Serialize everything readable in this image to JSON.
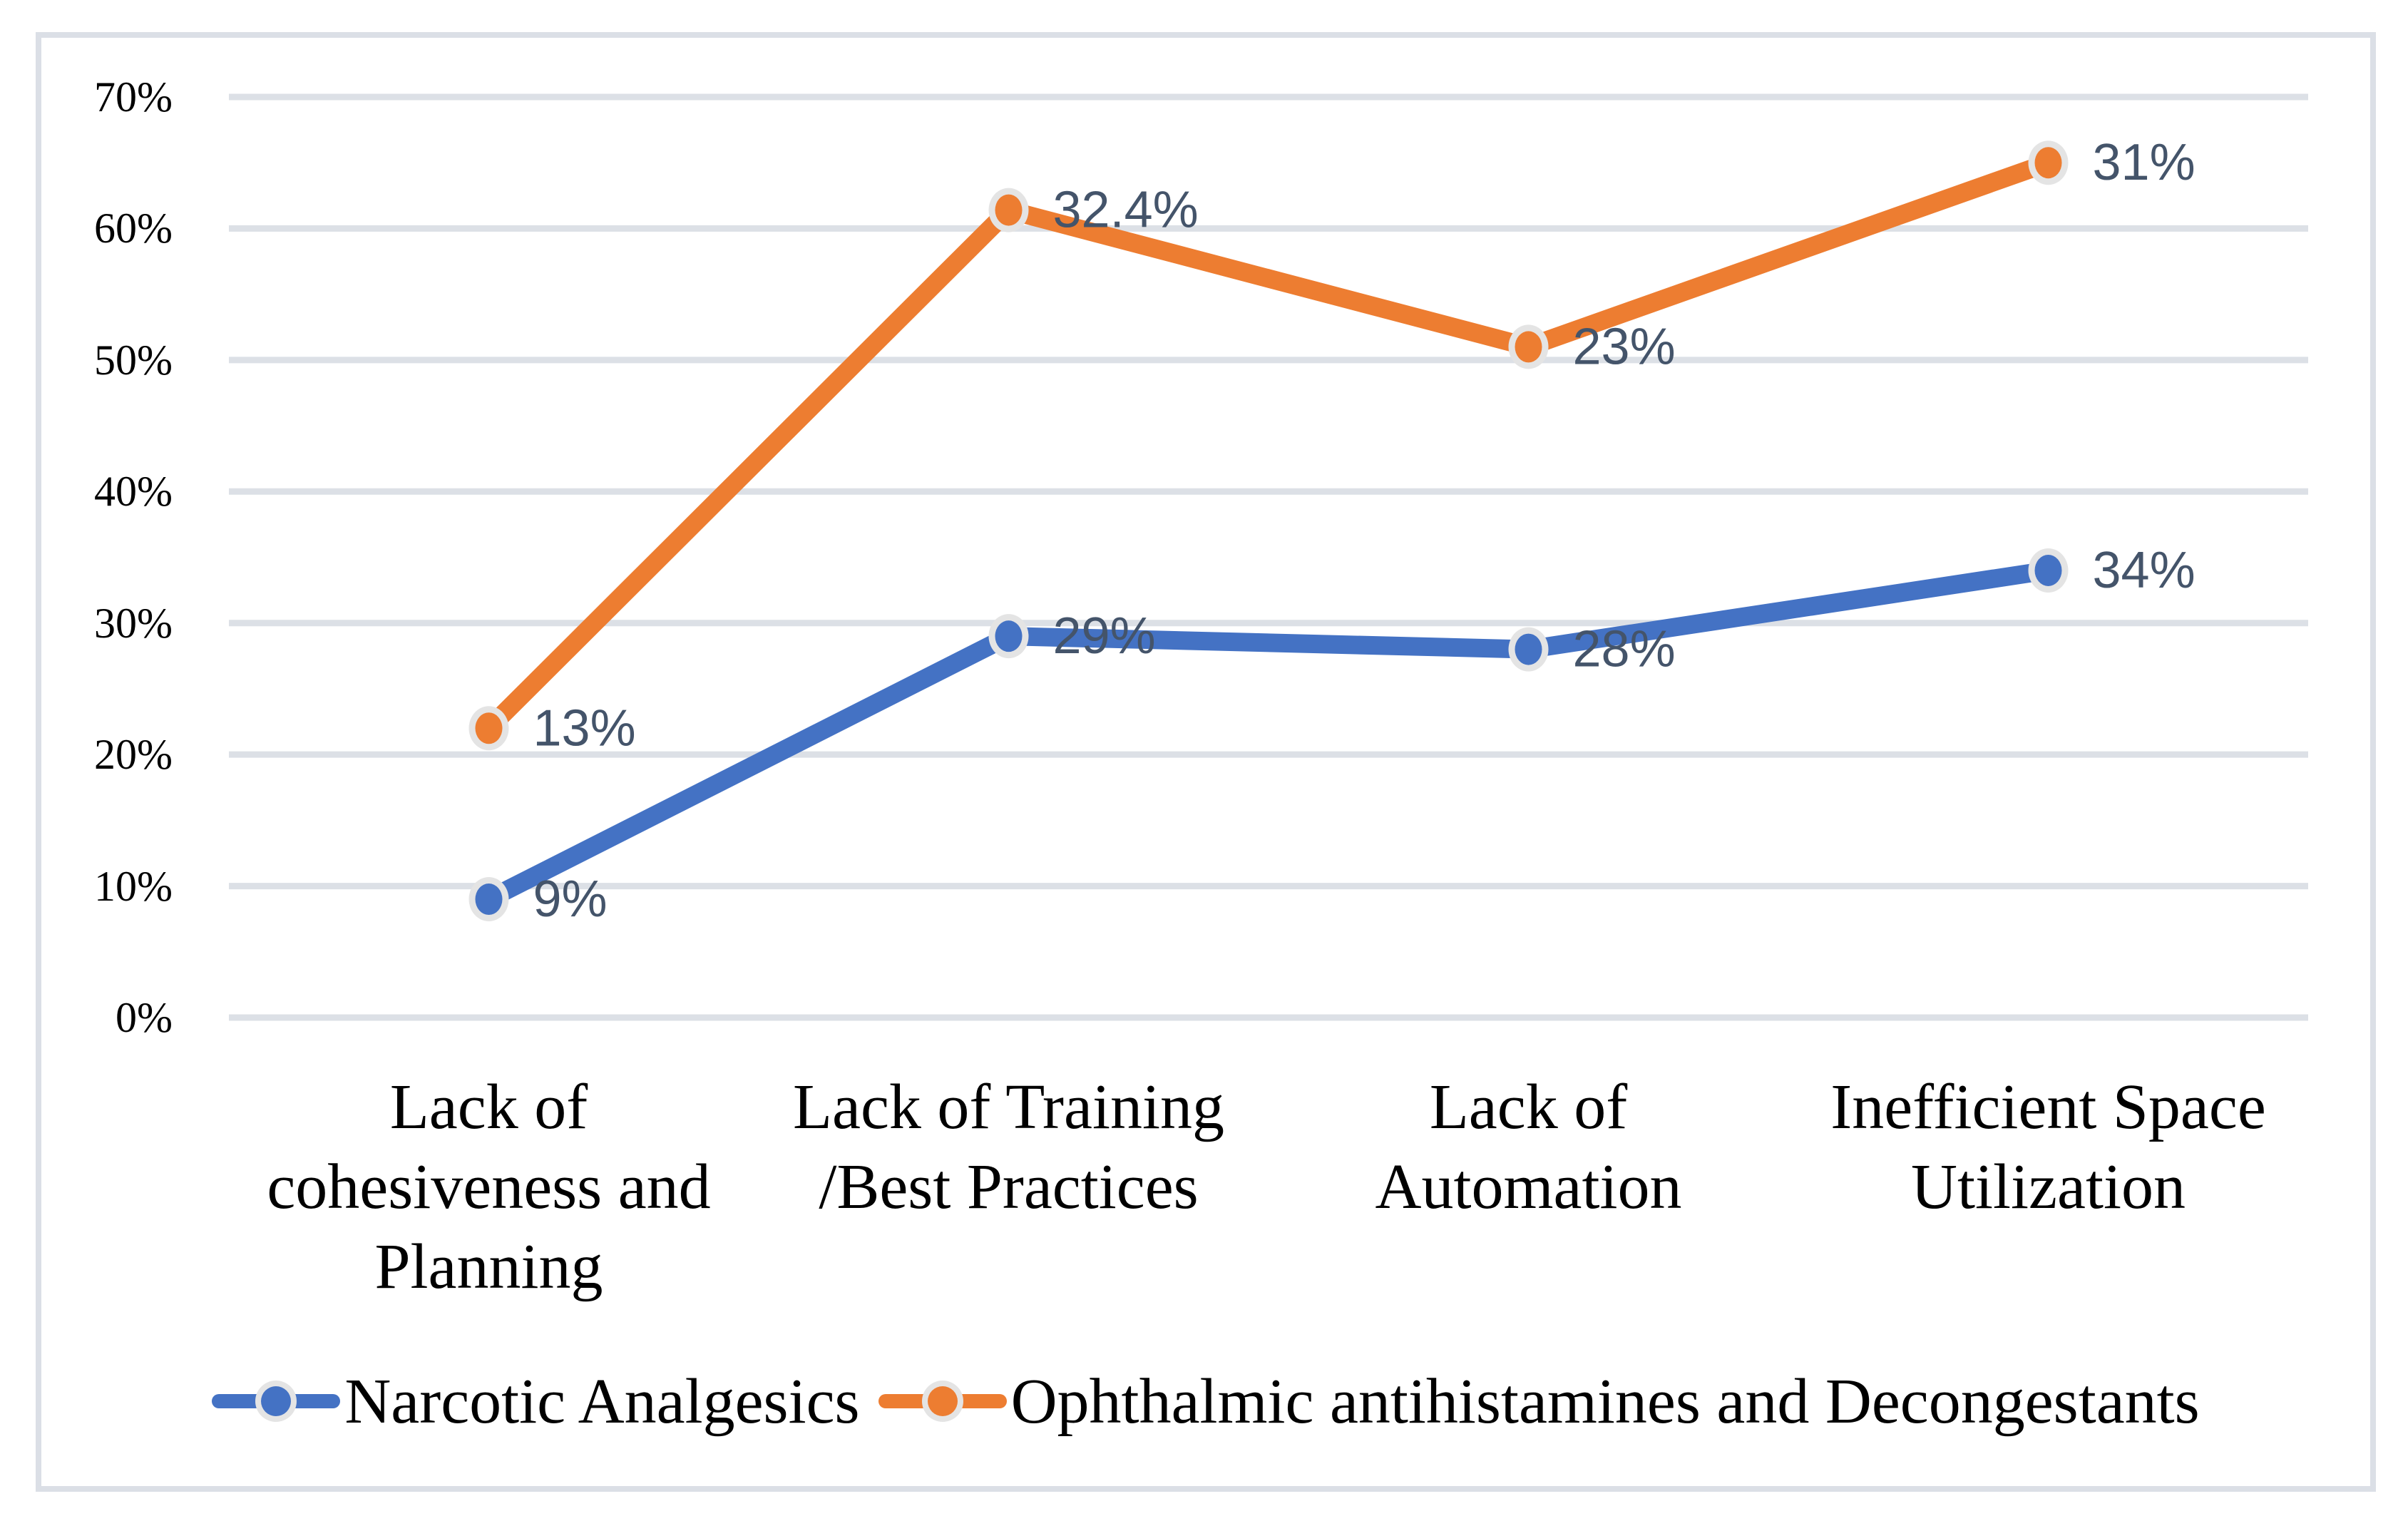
{
  "figure": {
    "background": "#FFFFFF",
    "frame_border_color": "#DBDFE6"
  },
  "chart_data": {
    "type": "line",
    "stacked": true,
    "title": "",
    "xlabel": "",
    "ylabel": "",
    "categories": [
      "Lack of cohesiveness and Planning",
      "Lack of Training /Best Practices",
      "Lack of Automation",
      "Inefficient Space Utilization"
    ],
    "categories_lines": [
      [
        "Lack of",
        "cohesiveness and",
        "Planning"
      ],
      [
        "Lack of Training",
        "/Best Practices"
      ],
      [
        "Lack of",
        "Automation"
      ],
      [
        "Inefficient Space",
        "Utilization"
      ]
    ],
    "series": [
      {
        "name": "Narcotic Analgesics",
        "color": "#4472C4",
        "values": [
          9,
          29,
          28,
          34
        ],
        "data_labels": [
          "9%",
          "29%",
          "28%",
          "34%"
        ],
        "plotted_values": [
          9,
          29,
          28,
          34
        ]
      },
      {
        "name": "Ophthalmic antihistamines and Decongestants",
        "color": "#ED7D31",
        "values": [
          13,
          32.4,
          23,
          31
        ],
        "data_labels": [
          "13%",
          "32.4%",
          "23%",
          "31%"
        ],
        "plotted_values": [
          22,
          61.4,
          51,
          65
        ]
      }
    ],
    "y_axis": {
      "tick_labels": [
        "0%",
        "10%",
        "20%",
        "30%",
        "40%",
        "50%",
        "60%",
        "70%"
      ],
      "min": 0,
      "max": 70,
      "step": 10,
      "grid": true
    },
    "legend": {
      "position": "bottom",
      "entries": [
        "Narcotic Analgesics",
        "Ophthalmic antihistamines and Decongestants"
      ]
    },
    "colors": {
      "gridline": "#DCE0E6",
      "data_label_text": "#44546A",
      "marker_ring": "#E4E4E4",
      "axis_text": "#000000"
    },
    "notes": "Orange series rendered cumulatively (stacked on blue): plotted point = blue value + orange value."
  }
}
